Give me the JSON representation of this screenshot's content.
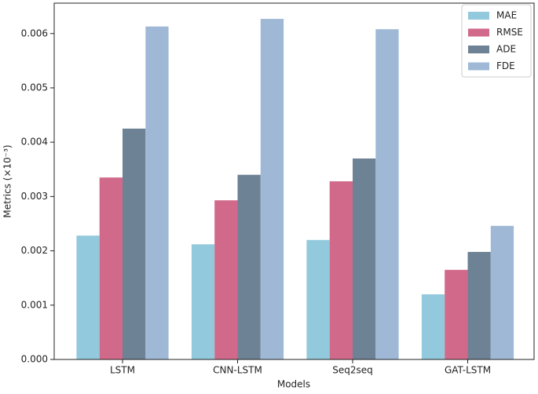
{
  "chart_data": {
    "type": "bar",
    "x_label": "Models",
    "y_label": "Metrics (×10⁻³)",
    "categories": [
      "LSTM",
      "CNN-LSTM",
      "Seq2seq",
      "GAT-LSTM"
    ],
    "series": [
      {
        "name": "MAE",
        "color": "#92c9dc",
        "values": [
          0.00228,
          0.00212,
          0.0022,
          0.0012
        ]
      },
      {
        "name": "RMSE",
        "color": "#d1698a",
        "values": [
          0.00335,
          0.00293,
          0.00328,
          0.00165
        ]
      },
      {
        "name": "ADE",
        "color": "#6e8296",
        "values": [
          0.00425,
          0.0034,
          0.0037,
          0.00198
        ]
      },
      {
        "name": "FDE",
        "color": "#9fb8d6",
        "values": [
          0.00613,
          0.00627,
          0.00608,
          0.00246
        ]
      }
    ],
    "ylim": [
      0,
      0.00656
    ],
    "yticks": [
      {
        "value": 0,
        "label": "0.000"
      },
      0.001,
      0.002,
      0.003,
      0.004,
      0.005,
      0.006
    ],
    "legend": "upper right"
  }
}
